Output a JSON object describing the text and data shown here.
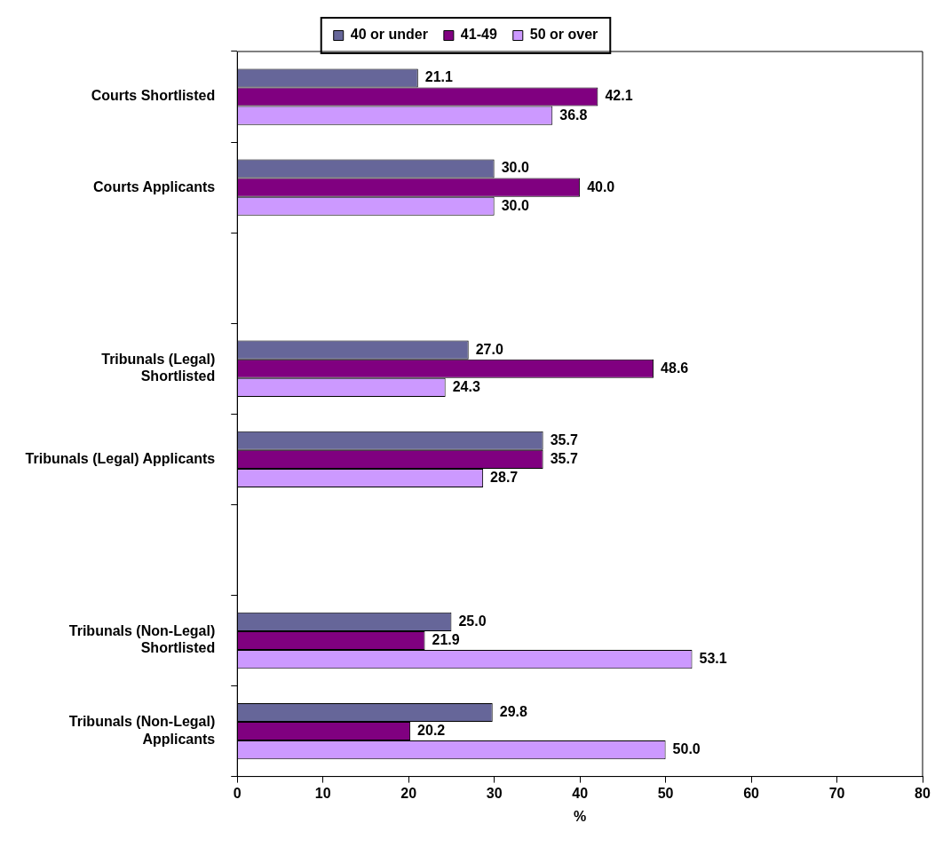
{
  "chart_data": {
    "type": "bar",
    "orientation": "horizontal",
    "xlabel": "%",
    "categories": [
      "Courts Shortlisted",
      "Courts Applicants",
      null,
      "Tribunals (Legal) Shortlisted",
      "Tribunals (Legal) Applicants",
      null,
      "Tribunals (Non-Legal) Shortlisted",
      "Tribunals (Non-Legal) Applicants"
    ],
    "series": [
      {
        "name": "40 or under",
        "color": "#666699",
        "values": [
          21.1,
          30.0,
          null,
          27.0,
          35.7,
          null,
          25.0,
          29.8
        ],
        "value_labels": [
          "21.1",
          "30.0",
          null,
          "27.0",
          "35.7",
          null,
          "25.0",
          "29.8"
        ]
      },
      {
        "name": "41-49",
        "color": "#800080",
        "values": [
          42.1,
          40.0,
          null,
          48.6,
          35.7,
          null,
          21.9,
          20.2
        ],
        "value_labels": [
          "42.1",
          "40.0",
          null,
          "48.6",
          "35.7",
          null,
          "21.9",
          "20.2"
        ]
      },
      {
        "name": "50 or over",
        "color": "#cc99ff",
        "values": [
          36.8,
          30.0,
          null,
          24.3,
          28.7,
          null,
          53.1,
          50.0
        ],
        "value_labels": [
          "36.8",
          "30.0",
          null,
          "24.3",
          "28.7",
          null,
          "53.1",
          "50.0"
        ]
      }
    ],
    "xlim": [
      0,
      80
    ],
    "xticks": [
      0,
      10,
      20,
      30,
      40,
      50,
      60,
      70,
      80
    ],
    "grid": false,
    "legend": "top"
  }
}
